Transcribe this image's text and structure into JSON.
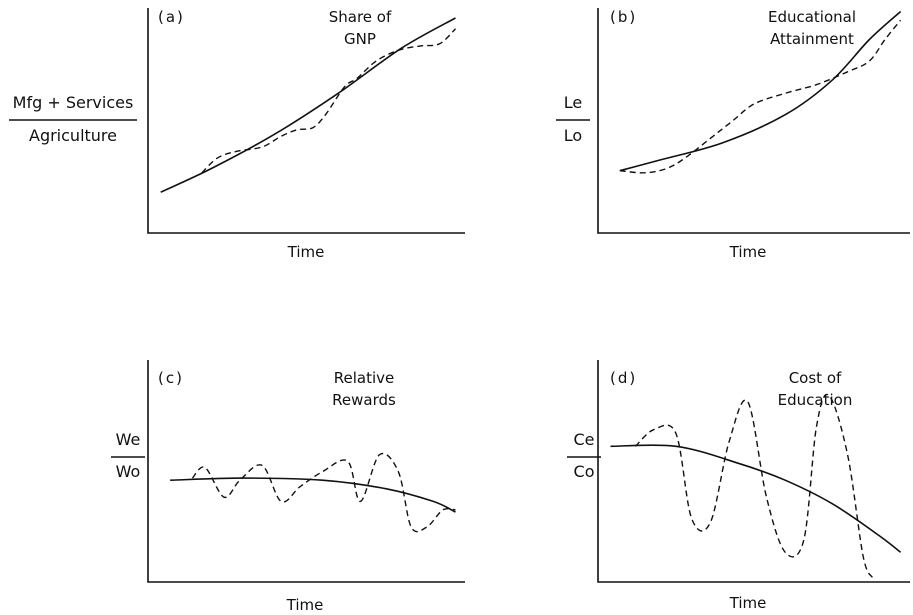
{
  "chart_data": [
    {
      "type": "line",
      "panel": "(a)",
      "title": "Share of GNP",
      "title_lines": [
        "Share of",
        "GNP"
      ],
      "ylabel_numerator": "Mfg + Services",
      "ylabel_denominator": "Agriculture",
      "xlabel": "Time",
      "xlim": [
        0,
        100
      ],
      "ylim": [
        0,
        100
      ],
      "series": [
        {
          "style": "solid",
          "x": [
            4,
            20,
            40,
            60,
            80,
            97
          ],
          "y": [
            19,
            30,
            46,
            65,
            86,
            100
          ]
        },
        {
          "style": "dashed",
          "x": [
            17,
            22,
            28,
            36,
            42,
            47,
            52,
            56,
            62,
            66,
            72,
            79,
            86,
            92,
            97
          ],
          "y": [
            28,
            35,
            38,
            40,
            45,
            48,
            49,
            55,
            68,
            72,
            80,
            85,
            87,
            88,
            95
          ]
        }
      ]
    },
    {
      "type": "line",
      "panel": "(b)",
      "title": "Educational Attainment",
      "title_lines": [
        "Educational",
        "Attainment"
      ],
      "ylabel_numerator": "Le",
      "ylabel_denominator": "Lo",
      "xlabel": "Time",
      "xlim": [
        0,
        100
      ],
      "ylim": [
        0,
        100
      ],
      "series": [
        {
          "style": "solid",
          "x": [
            7,
            20,
            40,
            60,
            75,
            87,
            97
          ],
          "y": [
            29,
            34,
            42,
            55,
            71,
            90,
            103
          ]
        },
        {
          "style": "dashed",
          "x": [
            7,
            15,
            22,
            28,
            36,
            43,
            50,
            60,
            70,
            80,
            87,
            92,
            97
          ],
          "y": [
            29,
            28,
            30,
            35,
            44,
            52,
            60,
            65,
            69,
            75,
            80,
            90,
            99
          ]
        }
      ]
    },
    {
      "type": "line",
      "panel": "(c)",
      "title": "Relative Rewards",
      "title_lines": [
        "Relative",
        "Rewards"
      ],
      "ylabel_numerator": "We",
      "ylabel_denominator": "Wo",
      "xlabel": "Time",
      "xlim": [
        0,
        100
      ],
      "ylim": [
        0,
        100
      ],
      "series": [
        {
          "style": "solid",
          "x": [
            7,
            30,
            55,
            75,
            90,
            97
          ],
          "y": [
            48,
            49,
            48,
            44,
            38,
            33
          ]
        },
        {
          "style": "dashed",
          "x": [
            14,
            18,
            24,
            29,
            36,
            42,
            48,
            55,
            63,
            67,
            73,
            79,
            83,
            88,
            93,
            97
          ],
          "y": [
            49,
            54,
            40,
            48,
            55,
            38,
            45,
            52,
            57,
            38,
            60,
            52,
            26,
            26,
            34,
            34
          ]
        }
      ]
    },
    {
      "type": "line",
      "panel": "(d)",
      "title": "Cost of Education",
      "title_lines": [
        "Cost of",
        "Education"
      ],
      "ylabel_numerator": "Ce",
      "ylabel_denominator": "Co",
      "xlabel": "Time",
      "xlim": [
        0,
        100
      ],
      "ylim": [
        0,
        100
      ],
      "series": [
        {
          "style": "solid",
          "x": [
            4,
            25,
            45,
            60,
            75,
            90,
            97
          ],
          "y": [
            64,
            64,
            56,
            48,
            37,
            22,
            14
          ]
        },
        {
          "style": "dashed",
          "x": [
            12,
            18,
            25,
            30,
            36,
            42,
            48,
            54,
            60,
            66,
            70,
            74,
            80,
            85,
            88
          ],
          "y": [
            64,
            72,
            70,
            30,
            28,
            66,
            85,
            40,
            14,
            20,
            73,
            88,
            60,
            12,
            2
          ]
        }
      ]
    }
  ]
}
